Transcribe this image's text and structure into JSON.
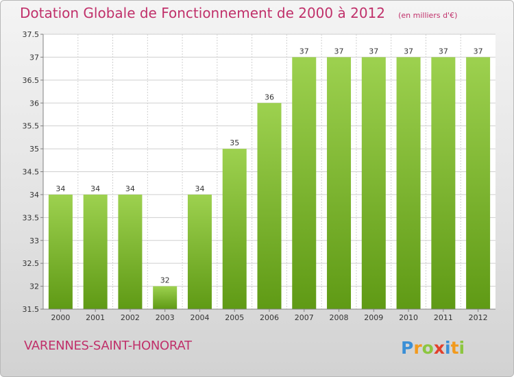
{
  "header": {
    "title": "Dotation Globale de Fonctionnement de 2000 à 2012",
    "unit": "(en milliers d'€)"
  },
  "footer": {
    "commune": "VARENNES-SAINT-HONORAT",
    "logo_text": "Proxiti"
  },
  "colors": {
    "accent": "#c0306a",
    "bar_top": "#9dd14f",
    "bar_bottom": "#5f9a15",
    "grid": "#cfcfcf",
    "axis": "#808080",
    "label": "#333333"
  },
  "chart_data": {
    "type": "bar",
    "title": "Dotation Globale de Fonctionnement de 2000 à 2012",
    "subtitle": "(en milliers d'€)",
    "xlabel": "",
    "ylabel": "",
    "categories": [
      "2000",
      "2001",
      "2002",
      "2003",
      "2004",
      "2005",
      "2006",
      "2007",
      "2008",
      "2009",
      "2010",
      "2011",
      "2012"
    ],
    "values": [
      34,
      34,
      34,
      32,
      34,
      35,
      36,
      37,
      37,
      37,
      37,
      37,
      37
    ],
    "data_labels": [
      "34",
      "34",
      "34",
      "32",
      "34",
      "35",
      "36",
      "37",
      "37",
      "37",
      "37",
      "37",
      "37"
    ],
    "ylim": [
      31.5,
      37.5
    ],
    "yticks": [
      31.5,
      32,
      32.5,
      33,
      33.5,
      34,
      34.5,
      35,
      35.5,
      36,
      36.5,
      37,
      37.5
    ],
    "ytick_labels": [
      "31.5",
      "32",
      "32.5",
      "33",
      "33.5",
      "34",
      "34.5",
      "35",
      "35.5",
      "36",
      "36.5",
      "37",
      "37.5"
    ],
    "grid": true,
    "legend": "none"
  }
}
